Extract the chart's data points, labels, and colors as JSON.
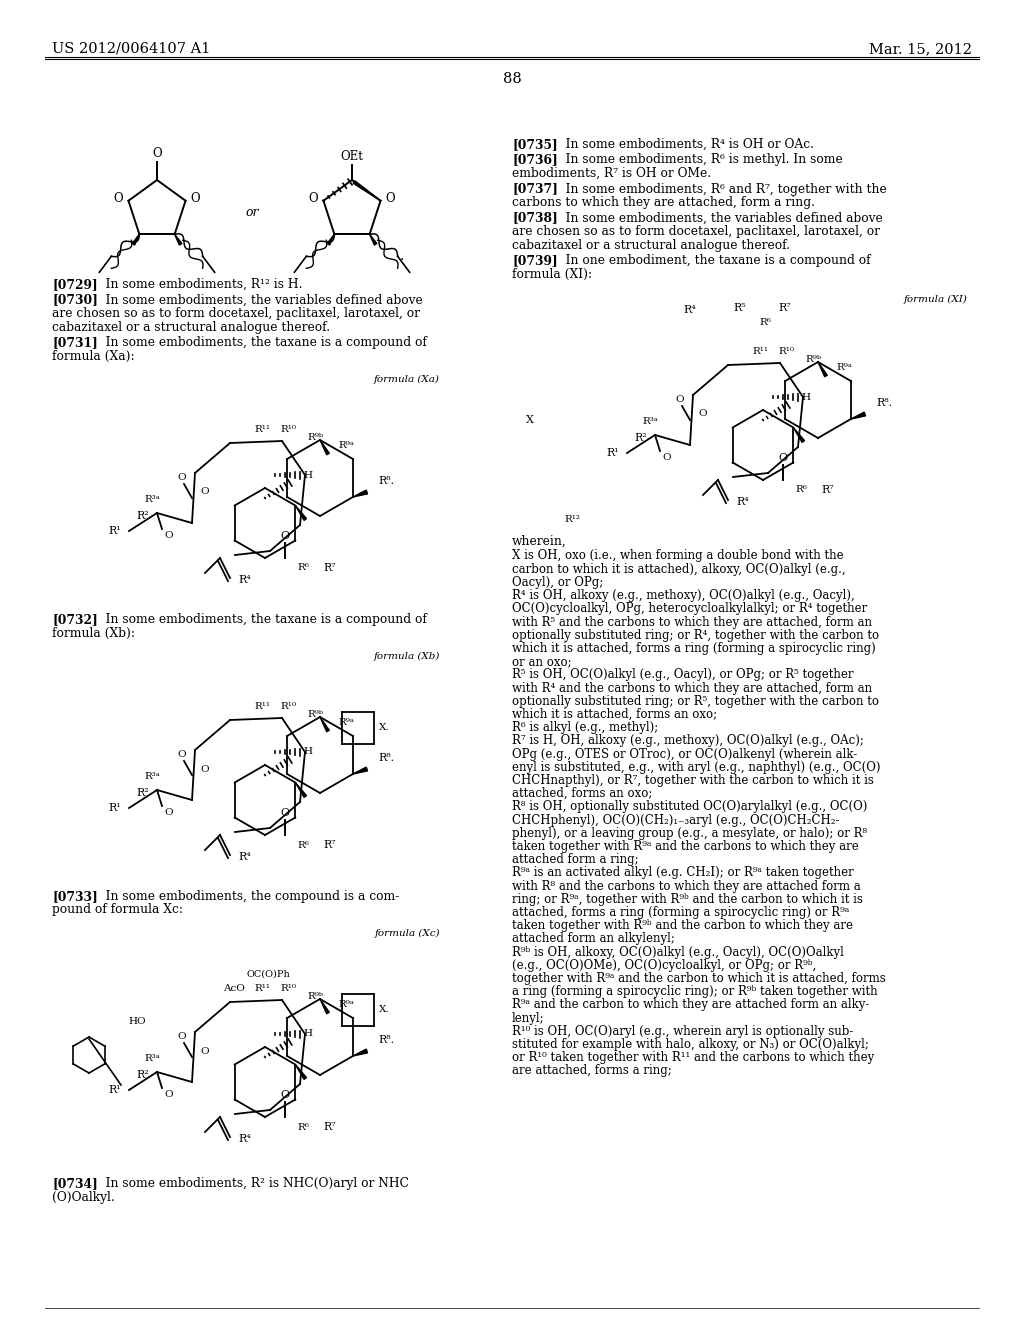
{
  "page_header_left": "US 2012/0064107 A1",
  "page_header_right": "Mar. 15, 2012",
  "page_number": "88",
  "background_color": "#ffffff",
  "text_color": "#000000",
  "font_size_header": 10.5,
  "font_size_body": 8.8,
  "font_size_small": 7.5
}
